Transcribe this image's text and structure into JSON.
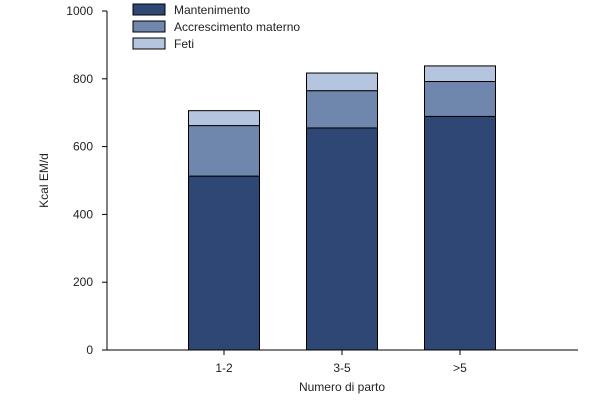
{
  "chart_data": {
    "type": "bar",
    "stacked": true,
    "title": "",
    "xlabel": "Numero di parto",
    "ylabel": "Kcal EM/d",
    "ylim": [
      0,
      1000
    ],
    "yticks": [
      "0",
      "200",
      "400",
      "600",
      "800",
      "1000"
    ],
    "categories": [
      "1-2",
      "3-5",
      ">5"
    ],
    "legend_position": "top-left",
    "grid": false,
    "series": [
      {
        "name": "Mantenimento",
        "values": [
          513,
          655,
          689
        ],
        "color": "#2e4775"
      },
      {
        "name": "Accrescimento materno",
        "values": [
          149,
          110,
          103
        ],
        "color": "#6f86ad"
      },
      {
        "name": "Feti",
        "values": [
          44,
          52,
          46
        ],
        "color": "#b5c5e0"
      }
    ]
  }
}
